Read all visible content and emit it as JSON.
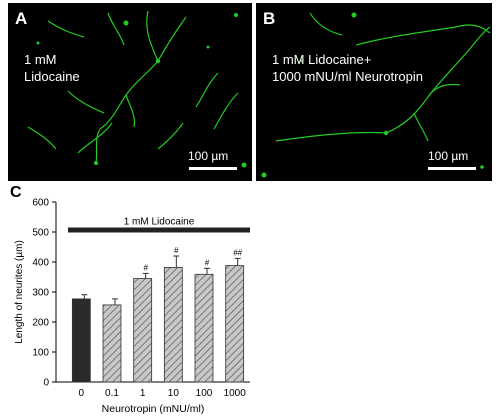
{
  "panels": [
    {
      "letter": "A",
      "condition_label": "1 mM\nLidocaine",
      "scale_bar_label": "100 µm"
    },
    {
      "letter": "B",
      "condition_label": "1 mM  Lidocaine+\n1000 mNU/ml  Neurotropin",
      "scale_bar_label": "100 µm"
    }
  ],
  "panel_c_letter": "C",
  "colors": {
    "background_image": "#000000",
    "neurite": "#22cc22",
    "control_bar": "#2a2a2a",
    "treatment_bar": "#c8c8c8"
  },
  "chart_data": {
    "type": "bar",
    "categories": [
      "0",
      "0.1",
      "1",
      "10",
      "100",
      "1000"
    ],
    "values": [
      277,
      257,
      345,
      382,
      359,
      388
    ],
    "errors": [
      14,
      20,
      17,
      38,
      20,
      24
    ],
    "significance": [
      "",
      "",
      "#",
      "#",
      "#",
      "##"
    ],
    "bar_fill": [
      "solid",
      "hatched",
      "hatched",
      "hatched",
      "hatched",
      "hatched"
    ],
    "xlabel": "Neurotropin (mNU/ml)",
    "ylabel": "Length of neurites  (µm)",
    "ylim": [
      0,
      600
    ],
    "yticks": [
      0,
      100,
      200,
      300,
      400,
      500,
      600
    ],
    "group_bracket_label": "1 mM Lidocaine",
    "grid": false
  }
}
